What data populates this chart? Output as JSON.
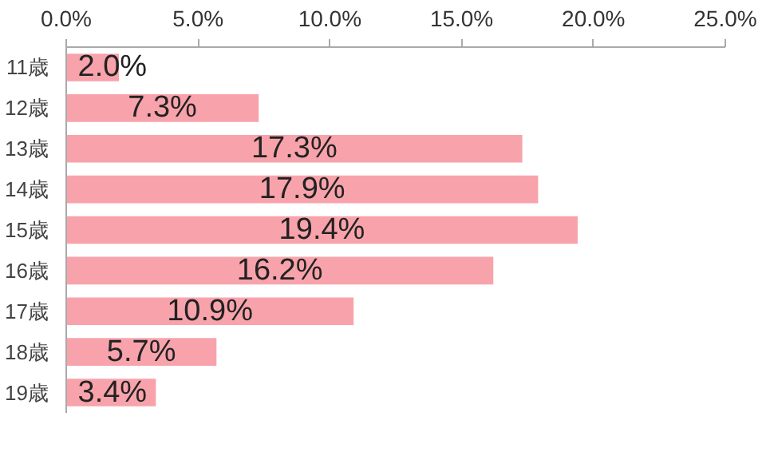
{
  "chart_data": {
    "type": "bar",
    "orientation": "horizontal",
    "categories": [
      "11歳",
      "12歳",
      "13歳",
      "14歳",
      "15歳",
      "16歳",
      "17歳",
      "18歳",
      "19歳"
    ],
    "values": [
      2.0,
      7.3,
      17.3,
      17.9,
      19.4,
      16.2,
      10.9,
      5.7,
      3.4
    ],
    "value_labels": [
      "2.0%",
      "7.3%",
      "17.3%",
      "17.9%",
      "19.4%",
      "16.2%",
      "10.9%",
      "5.7%",
      "3.4%"
    ],
    "color": "#f8a3ab",
    "xlim": [
      0,
      25
    ],
    "xticks": [
      {
        "value": 0,
        "label": "0.0%"
      },
      {
        "value": 5,
        "label": "5.0%"
      },
      {
        "value": 10,
        "label": "10.0%"
      },
      {
        "value": 15,
        "label": "15.0%"
      },
      {
        "value": 20,
        "label": "20.0%"
      },
      {
        "value": 25,
        "label": "25.0%"
      }
    ],
    "grid": false
  }
}
